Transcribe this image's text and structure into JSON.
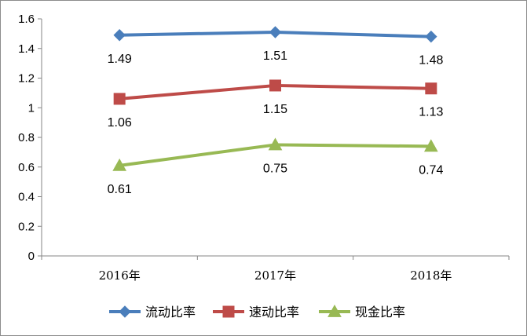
{
  "chart_data": {
    "type": "line",
    "title": "",
    "xlabel": "",
    "ylabel": "",
    "categories": [
      "2016年",
      "2017年",
      "2018年"
    ],
    "ylim": [
      0,
      1.6
    ],
    "yticks": [
      "0",
      "0.2",
      "0.4",
      "0.6",
      "0.8",
      "1",
      "1.2",
      "1.4",
      "1.6"
    ],
    "grid": false,
    "legend": "bottom",
    "series": [
      {
        "name": "流动比率",
        "values": [
          1.49,
          1.51,
          1.48
        ],
        "labels": [
          "1.49",
          "1.51",
          "1.48"
        ],
        "color": "#4a7ebb",
        "marker": "diamond"
      },
      {
        "name": "速动比率",
        "values": [
          1.06,
          1.15,
          1.13
        ],
        "labels": [
          "1.06",
          "1.15",
          "1.13"
        ],
        "color": "#be4b48",
        "marker": "square"
      },
      {
        "name": "现金比率",
        "values": [
          0.61,
          0.75,
          0.74
        ],
        "labels": [
          "0.61",
          "0.75",
          "0.74"
        ],
        "color": "#98b954",
        "marker": "triangle"
      }
    ]
  }
}
